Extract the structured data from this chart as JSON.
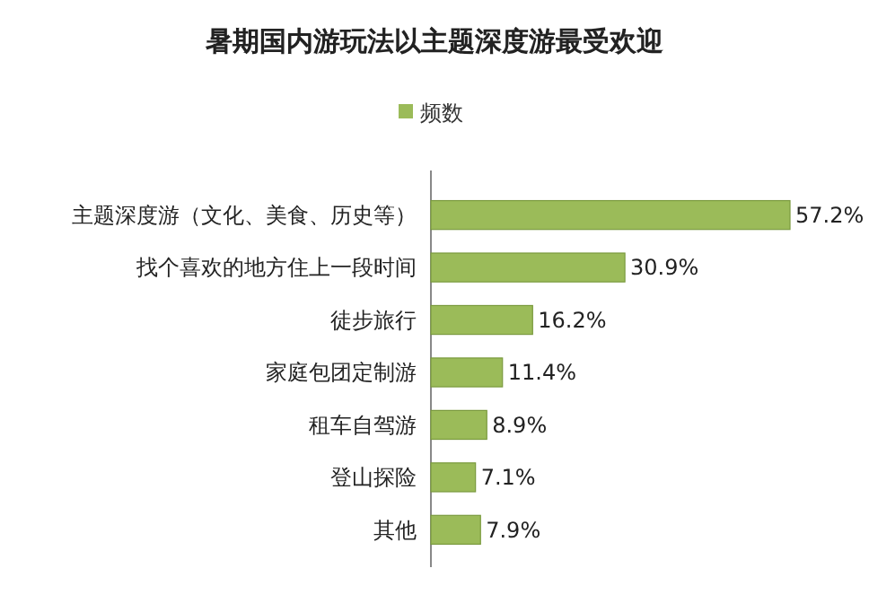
{
  "chart_data": {
    "type": "bar",
    "orientation": "horizontal",
    "title": "暑期国内游玩法以主题深度游最受欢迎",
    "categories": [
      "主题深度游（文化、美食、历史等）",
      "找个喜欢的地方住上一段时间",
      "徒步旅行",
      "家庭包团定制游",
      "租车自驾游",
      "登山探险",
      "其他"
    ],
    "series": [
      {
        "name": "频数",
        "color": "#9bbb59",
        "values": [
          57.2,
          30.9,
          16.2,
          11.4,
          8.9,
          7.1,
          7.9
        ],
        "value_labels": [
          "57.2%",
          "30.9%",
          "16.2%",
          "11.4%",
          "8.9%",
          "7.1%",
          "7.9%"
        ]
      }
    ],
    "tick_labels": "y",
    "legend": "top"
  }
}
